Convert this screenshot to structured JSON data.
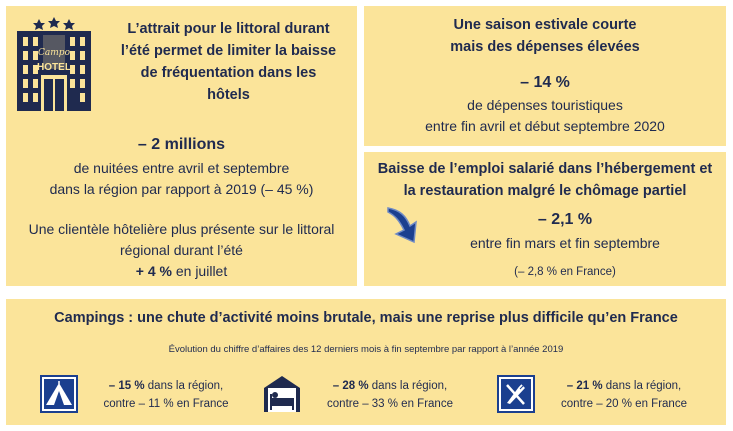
{
  "hotels": {
    "logo_text": "HOTEL",
    "logo_script": "Campo",
    "title_lines": [
      "L’attrait pour le littoral durant",
      "l’été permet de limiter la baisse",
      "de fréquentation dans les",
      "hôtels"
    ],
    "big_value": "– 2 millions",
    "desc_lines": [
      "de nuitées entre avril et septembre",
      "dans la région par rapport à 2019 (– 45 %)"
    ],
    "client_lines": [
      "Une clientèle hôtelière plus présente sur le littoral",
      "régional durant l’été"
    ],
    "client_value": "+ 4 %",
    "client_suffix": " en juillet"
  },
  "season": {
    "title_lines": [
      "Une saison estivale courte",
      "mais des dépenses élevées"
    ],
    "big_value": "– 14 %",
    "desc_lines": [
      "de dépenses touristiques",
      "entre fin avril et début septembre 2020"
    ]
  },
  "employment": {
    "title_lines": [
      "Baisse de l’emploi salarié dans l’hébergement et",
      "la restauration malgré le chômage partiel"
    ],
    "big_value": "– 2,1 %",
    "desc": "entre fin mars et fin septembre",
    "france_note": "(– 2,8 % en France)"
  },
  "campings": {
    "title": "Campings : une chute d’activité moins brutale, mais une reprise plus difficile qu’en France",
    "subtitle": "Évolution du chiffre d’affaires des 12 derniers mois à fin septembre par rapport à l’année 2019",
    "items": [
      {
        "icon": "camping-tent-icon",
        "value": "– 15 %",
        "line1_suffix": " dans la région,",
        "line2": "contre – 11 % en France"
      },
      {
        "icon": "lodging-bed-icon",
        "value": "– 28 %",
        "line1_suffix": " dans la région,",
        "line2": "contre – 33 % en France"
      },
      {
        "icon": "restaurant-icon",
        "value": "– 21 %",
        "line1_suffix": " dans la région,",
        "line2": "contre – 20 % en France"
      }
    ]
  },
  "colors": {
    "card_bg": "#fbe49a",
    "text": "#1f2a4f",
    "icon_blue": "#1b3f8f"
  }
}
